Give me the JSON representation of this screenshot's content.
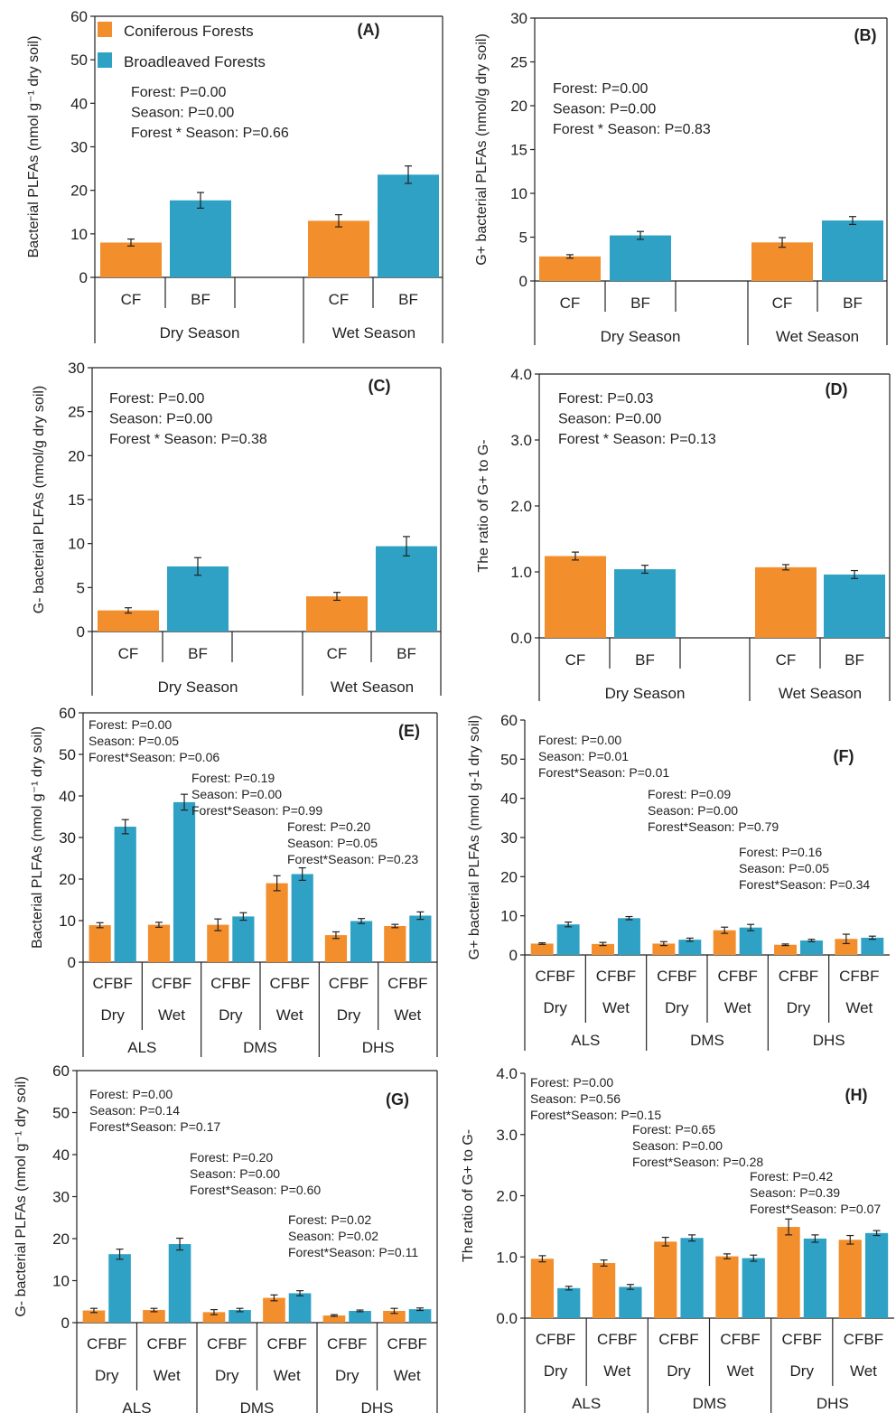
{
  "colors": {
    "coniferous": "#F28E2B",
    "broadleaved": "#2EA1C4",
    "axis": "#222222"
  },
  "legend": [
    {
      "label": "Coniferous Forests",
      "color": "#F28E2B"
    },
    {
      "label": "Broadleaved Forests",
      "color": "#2EA1C4"
    }
  ],
  "chart_data": [
    {
      "panel": "(A)",
      "type": "bar",
      "ylabel": "Bacterial PLFAs (nmol g⁻¹ dry soil)",
      "ylim": [
        0,
        60
      ],
      "ytick_step": 10,
      "ytick_decimals": 0,
      "stats": [
        "Forest: P=0.00",
        "Season: P=0.00",
        "Forest * Season: P=0.66"
      ],
      "groups": [
        "Dry Season",
        "Wet Season"
      ],
      "bars": [
        {
          "label": "CF",
          "group": "Dry Season",
          "value": 8.0,
          "err": 0.8,
          "series": "Coniferous Forests"
        },
        {
          "label": "BF",
          "group": "Dry Season",
          "value": 17.7,
          "err": 1.8,
          "series": "Broadleaved Forests"
        },
        {
          "label": "CF",
          "group": "Wet Season",
          "value": 13.0,
          "err": 1.4,
          "series": "Coniferous Forests"
        },
        {
          "label": "BF",
          "group": "Wet Season",
          "value": 23.6,
          "err": 2.0,
          "series": "Broadleaved Forests"
        }
      ]
    },
    {
      "panel": "(B)",
      "type": "bar",
      "ylabel": "G+ bacterial PLFAs (nmol/g dry soil)",
      "ylim": [
        0,
        30
      ],
      "ytick_step": 5,
      "ytick_decimals": 0,
      "stats": [
        "Forest: P=0.00",
        "Season: P=0.00",
        "Forest * Season: P=0.83"
      ],
      "groups": [
        "Dry Season",
        "Wet Season"
      ],
      "bars": [
        {
          "label": "CF",
          "group": "Dry Season",
          "value": 2.8,
          "err": 0.2,
          "series": "Coniferous Forests"
        },
        {
          "label": "BF",
          "group": "Dry Season",
          "value": 5.2,
          "err": 0.45,
          "series": "Broadleaved Forests"
        },
        {
          "label": "CF",
          "group": "Wet Season",
          "value": 4.4,
          "err": 0.55,
          "series": "Coniferous Forests"
        },
        {
          "label": "BF",
          "group": "Wet Season",
          "value": 6.9,
          "err": 0.45,
          "series": "Broadleaved Forests"
        }
      ]
    },
    {
      "panel": "(C)",
      "type": "bar",
      "ylabel": "G- bacterial PLFAs (nmol/g dry soil)",
      "ylim": [
        0,
        30
      ],
      "ytick_step": 5,
      "ytick_decimals": 0,
      "stats": [
        "Forest: P=0.00",
        "Season: P=0.00",
        "Forest * Season: P=0.38"
      ],
      "groups": [
        "Dry Season",
        "Wet Season"
      ],
      "bars": [
        {
          "label": "CF",
          "group": "Dry Season",
          "value": 2.4,
          "err": 0.3,
          "series": "Coniferous Forests"
        },
        {
          "label": "BF",
          "group": "Dry Season",
          "value": 7.4,
          "err": 1.0,
          "series": "Broadleaved Forests"
        },
        {
          "label": "CF",
          "group": "Wet Season",
          "value": 4.0,
          "err": 0.45,
          "series": "Coniferous Forests"
        },
        {
          "label": "BF",
          "group": "Wet Season",
          "value": 9.7,
          "err": 1.1,
          "series": "Broadleaved Forests"
        }
      ]
    },
    {
      "panel": "(D)",
      "type": "bar",
      "ylabel": "The  ratio of G+ to G-",
      "ylim": [
        0,
        4
      ],
      "ytick_step": 1,
      "ytick_decimals": 1,
      "stats": [
        "Forest: P=0.03",
        "Season: P=0.00",
        "Forest * Season: P=0.13"
      ],
      "groups": [
        "Dry Season",
        "Wet Season"
      ],
      "bars": [
        {
          "label": "CF",
          "group": "Dry Season",
          "value": 1.24,
          "err": 0.06,
          "series": "Coniferous Forests"
        },
        {
          "label": "BF",
          "group": "Dry Season",
          "value": 1.04,
          "err": 0.06,
          "series": "Broadleaved Forests"
        },
        {
          "label": "CF",
          "group": "Wet Season",
          "value": 1.07,
          "err": 0.04,
          "series": "Coniferous Forests"
        },
        {
          "label": "BF",
          "group": "Wet Season",
          "value": 0.96,
          "err": 0.06,
          "series": "Broadleaved Forests"
        }
      ]
    },
    {
      "panel": "(E)",
      "type": "bar",
      "ylabel": "Bacterial PLFAs (nmol g⁻¹ dry soil)",
      "ylim": [
        0,
        60
      ],
      "ytick_step": 10,
      "ytick_decimals": 0,
      "sites": [
        "ALS",
        "DMS",
        "DHS"
      ],
      "seasons": [
        "Dry",
        "Wet"
      ],
      "pair_label": "CFBF",
      "stats": [
        [
          "Forest: P=0.00",
          "Season: P=0.05",
          "Forest*Season: P=0.06"
        ],
        [
          "Forest: P=0.19",
          "Season: P=0.00",
          "Forest*Season: P=0.99"
        ],
        [
          "Forest: P=0.20",
          "Season: P=0.05",
          "Forest*Season: P=0.23"
        ]
      ],
      "cf": [
        8.9,
        9.0,
        9.0,
        19.0,
        6.5,
        8.7
      ],
      "cf_err": [
        0.6,
        0.6,
        1.4,
        1.8,
        0.8,
        0.4
      ],
      "bf": [
        32.6,
        38.5,
        11.0,
        21.2,
        9.9,
        11.2
      ],
      "bf_err": [
        1.7,
        1.9,
        0.9,
        1.5,
        0.6,
        0.9
      ]
    },
    {
      "panel": "(F)",
      "type": "bar",
      "ylabel": "G+ bacterial PLFAs (nmol g-1 dry soil)",
      "ylim": [
        0,
        60
      ],
      "ytick_step": 10,
      "ytick_decimals": 0,
      "sites": [
        "ALS",
        "DMS",
        "DHS"
      ],
      "seasons": [
        "Dry",
        "Wet"
      ],
      "pair_label": "CFBF",
      "stats": [
        [
          "Forest: P=0.00",
          "Season: P=0.01",
          "Forest*Season: P=0.01"
        ],
        [
          "Forest: P=0.09",
          "Season: P=0.00",
          "Forest*Season: P=0.79"
        ],
        [
          "Forest: P=0.16",
          "Season: P=0.05",
          "Forest*Season: P=0.34"
        ]
      ],
      "cf": [
        2.9,
        2.8,
        2.9,
        6.3,
        2.6,
        4.1
      ],
      "cf_err": [
        0.2,
        0.4,
        0.5,
        0.8,
        0.2,
        1.2
      ],
      "bf": [
        7.8,
        9.4,
        3.9,
        7.0,
        3.7,
        4.4
      ],
      "bf_err": [
        0.6,
        0.4,
        0.4,
        0.8,
        0.3,
        0.4
      ]
    },
    {
      "panel": "(G)",
      "type": "bar",
      "ylabel": "G- bacterial PLFAs (nmol g⁻¹ dry soil)",
      "ylim": [
        0,
        60
      ],
      "ytick_step": 10,
      "ytick_decimals": 0,
      "sites": [
        "ALS",
        "DMS",
        "DHS"
      ],
      "seasons": [
        "Dry",
        "Wet"
      ],
      "pair_label": "CFBF",
      "stats": [
        [
          "Forest: P=0.00",
          "Season: P=0.14",
          "Forest*Season: P=0.17"
        ],
        [
          "Forest: P=0.20",
          "Season: P=0.00",
          "Forest*Season: P=0.60"
        ],
        [
          "Forest: P=0.02",
          "Season: P=0.02",
          "Forest*Season: P=0.11"
        ]
      ],
      "cf": [
        2.9,
        3.0,
        2.5,
        5.9,
        1.7,
        2.8
      ],
      "cf_err": [
        0.5,
        0.4,
        0.6,
        0.7,
        0.2,
        0.6
      ],
      "bf": [
        16.3,
        18.7,
        3.0,
        7.0,
        2.8,
        3.2
      ],
      "bf_err": [
        1.2,
        1.4,
        0.4,
        0.6,
        0.2,
        0.3
      ]
    },
    {
      "panel": "(H)",
      "type": "bar",
      "ylabel": "The ratio of G+ to G-",
      "ylim": [
        0,
        4
      ],
      "ytick_step": 1,
      "ytick_decimals": 1,
      "sites": [
        "ALS",
        "DMS",
        "DHS"
      ],
      "seasons": [
        "Dry",
        "Wet"
      ],
      "pair_label": "CFBF",
      "stats": [
        [
          "Forest: P=0.00",
          "Season: P=0.56",
          "Forest*Season: P=0.15"
        ],
        [
          "Forest: P=0.65",
          "Season: P=0.00",
          "Forest*Season: P=0.28"
        ],
        [
          "Forest: P=0.42",
          "Season: P=0.39",
          "Forest*Season: P=0.07"
        ]
      ],
      "cf": [
        0.97,
        0.9,
        1.25,
        1.01,
        1.49,
        1.28
      ],
      "cf_err": [
        0.05,
        0.05,
        0.07,
        0.04,
        0.13,
        0.07
      ],
      "bf": [
        0.49,
        0.51,
        1.31,
        0.98,
        1.3,
        1.39
      ],
      "bf_err": [
        0.03,
        0.04,
        0.05,
        0.05,
        0.06,
        0.04
      ]
    }
  ]
}
